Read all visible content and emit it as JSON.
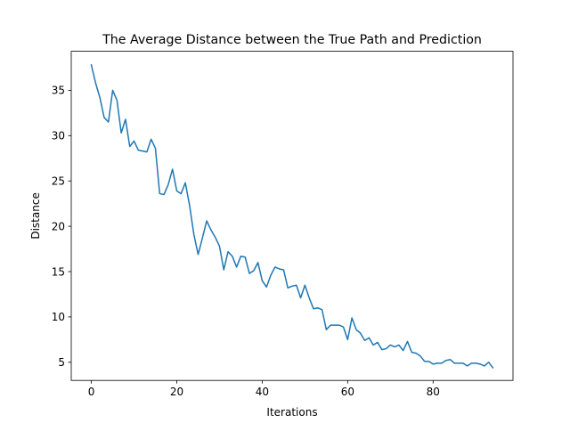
{
  "chart_data": {
    "type": "line",
    "title": "The Average Distance between the True Path and Prediction",
    "xlabel": "Iterations",
    "ylabel": "Distance",
    "xlim": [
      -4.7,
      98.7
    ],
    "ylim": [
      3.0,
      39.3
    ],
    "xticks": [
      0,
      20,
      40,
      60,
      80
    ],
    "xtick_labels": [
      "0",
      "20",
      "40",
      "60",
      "80"
    ],
    "yticks": [
      5,
      10,
      15,
      20,
      25,
      30,
      35
    ],
    "ytick_labels": [
      "5",
      "10",
      "15",
      "20",
      "25",
      "30",
      "35"
    ],
    "grid": false,
    "legend": "none",
    "line_color": "#1f77b4",
    "x": [
      0,
      1,
      2,
      3,
      4,
      5,
      6,
      7,
      8,
      9,
      10,
      11,
      12,
      13,
      14,
      15,
      16,
      17,
      18,
      19,
      20,
      21,
      22,
      23,
      24,
      25,
      26,
      27,
      28,
      29,
      30,
      31,
      32,
      33,
      34,
      35,
      36,
      37,
      38,
      39,
      40,
      41,
      42,
      43,
      44,
      45,
      46,
      47,
      48,
      49,
      50,
      51,
      52,
      53,
      54,
      55,
      56,
      57,
      58,
      59,
      60,
      61,
      62,
      63,
      64,
      65,
      66,
      67,
      68,
      69,
      70,
      71,
      72,
      73,
      74,
      75,
      76,
      77,
      78,
      79,
      80,
      81,
      82,
      83,
      84,
      85,
      86,
      87,
      88,
      89,
      90,
      91,
      92,
      93,
      94
    ],
    "series": [
      {
        "values": [
          37.8,
          35.8,
          34.2,
          32.0,
          31.5,
          35.0,
          33.9,
          30.3,
          31.8,
          28.8,
          29.4,
          28.4,
          28.3,
          28.2,
          29.6,
          28.6,
          23.6,
          23.5,
          24.6,
          26.3,
          23.9,
          23.6,
          24.8,
          22.3,
          19.1,
          16.9,
          18.7,
          20.6,
          19.6,
          18.8,
          17.8,
          15.2,
          17.2,
          16.7,
          15.5,
          16.7,
          16.6,
          14.8,
          15.1,
          16.0,
          14.0,
          13.3,
          14.6,
          15.5,
          15.3,
          15.2,
          13.2,
          13.4,
          13.5,
          12.1,
          13.5,
          12.1,
          10.9,
          11.0,
          10.8,
          8.6,
          9.1,
          9.1,
          9.1,
          8.9,
          7.5,
          9.9,
          8.6,
          8.2,
          7.4,
          7.7,
          6.9,
          7.2,
          6.4,
          6.5,
          6.9,
          6.7,
          6.9,
          6.3,
          7.3,
          6.1,
          6.0,
          5.7,
          5.1,
          5.1,
          4.8,
          4.9,
          4.9,
          5.2,
          5.3,
          4.9,
          4.9,
          4.9,
          4.6,
          4.9,
          4.9,
          4.8,
          4.6,
          5.0,
          4.4
        ]
      }
    ]
  }
}
